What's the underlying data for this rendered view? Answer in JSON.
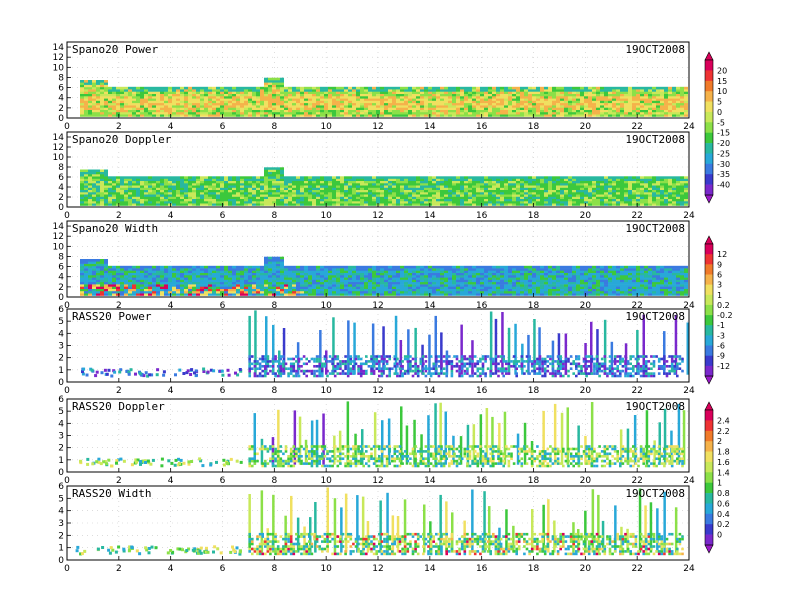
{
  "chart_data": [
    {
      "type": "heatmap",
      "title": "Spano20 Power",
      "date": "19OCT2008",
      "yticks": [
        "0",
        "2",
        "4",
        "6",
        "8",
        "10",
        "12",
        "14"
      ],
      "ylim": [
        0,
        15
      ],
      "xticks": [
        "0",
        "2",
        "4",
        "6",
        "8",
        "10",
        "12",
        "14",
        "16",
        "18",
        "20",
        "22",
        "24"
      ],
      "xlim": [
        0,
        24
      ]
    },
    {
      "type": "heatmap",
      "title": "Spano20 Doppler",
      "date": "19OCT2008",
      "yticks": [
        "0",
        "2",
        "4",
        "6",
        "8",
        "10",
        "12",
        "14"
      ],
      "ylim": [
        0,
        15
      ],
      "xticks": [
        "0",
        "2",
        "4",
        "6",
        "8",
        "10",
        "12",
        "14",
        "16",
        "18",
        "20",
        "22",
        "24"
      ],
      "xlim": [
        0,
        24
      ]
    },
    {
      "type": "heatmap",
      "title": "Spano20 Width",
      "date": "19OCT2008",
      "yticks": [
        "0",
        "2",
        "4",
        "6",
        "8",
        "10",
        "12",
        "14"
      ],
      "ylim": [
        0,
        15
      ],
      "xticks": [
        "0",
        "2",
        "4",
        "6",
        "8",
        "10",
        "12",
        "14",
        "16",
        "18",
        "20",
        "22",
        "24"
      ],
      "xlim": [
        0,
        24
      ]
    },
    {
      "type": "heatmap",
      "title": "RASS20 Power",
      "date": "19OCT2008",
      "yticks": [
        "0",
        "1",
        "2",
        "3",
        "4",
        "5",
        "6"
      ],
      "ylim": [
        0,
        6
      ],
      "xticks": [
        "0",
        "2",
        "4",
        "6",
        "8",
        "10",
        "12",
        "14",
        "16",
        "18",
        "20",
        "22",
        "24"
      ],
      "xlim": [
        0,
        24
      ]
    },
    {
      "type": "heatmap",
      "title": "RASS20 Doppler",
      "date": "19OCT2008",
      "yticks": [
        "0",
        "1",
        "2",
        "3",
        "4",
        "5",
        "6"
      ],
      "ylim": [
        0,
        6
      ],
      "xticks": [
        "0",
        "2",
        "4",
        "6",
        "8",
        "10",
        "12",
        "14",
        "16",
        "18",
        "20",
        "22",
        "24"
      ],
      "xlim": [
        0,
        24
      ]
    },
    {
      "type": "heatmap",
      "title": "RASS20 Width",
      "date": "19OCT2008",
      "yticks": [
        "0",
        "1",
        "2",
        "3",
        "4",
        "5",
        "6"
      ],
      "ylim": [
        0,
        6
      ],
      "xticks": [
        "0",
        "2",
        "4",
        "6",
        "8",
        "10",
        "12",
        "14",
        "16",
        "18",
        "20",
        "22",
        "24"
      ],
      "xlim": [
        0,
        24
      ]
    }
  ],
  "colorbars": [
    {
      "labels": [
        "20",
        "15",
        "10",
        "5",
        "0",
        "-5",
        "-15",
        "-20",
        "-25",
        "-30",
        "-35",
        "-40"
      ]
    },
    {
      "labels": [
        "12",
        "9",
        "6",
        "3",
        "1",
        "0.2",
        "-0.2",
        "-1",
        "-3",
        "-6",
        "-9",
        "-12"
      ]
    },
    {
      "labels": [
        "2.4",
        "2.2",
        "2",
        "1.8",
        "1.6",
        "1.4",
        "1",
        "0.8",
        "0.6",
        "0.4",
        "0.2",
        "0"
      ]
    }
  ],
  "colors": [
    "#d9005a",
    "#ee3333",
    "#f07a2a",
    "#f5b24a",
    "#f0e060",
    "#c8e85a",
    "#8ce048",
    "#3cc83c",
    "#28b8a0",
    "#28a8d8",
    "#3a7ae0",
    "#3a3acc",
    "#7a28cc",
    "#9a18c8"
  ]
}
